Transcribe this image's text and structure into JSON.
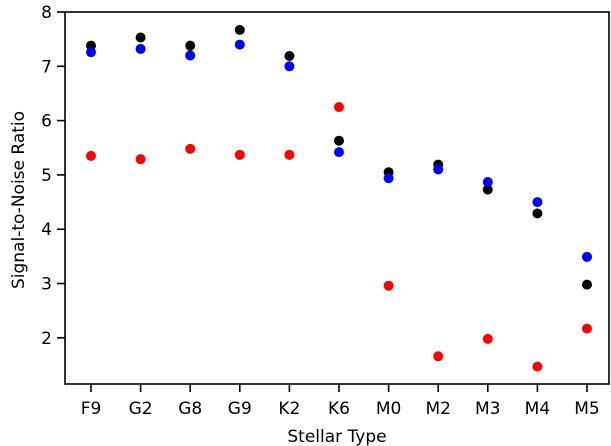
{
  "chart_data": {
    "type": "scatter",
    "xlabel": "Stellar Type",
    "ylabel": "Signal-to-Noise Ratio",
    "categories": [
      "F9",
      "G2",
      "G8",
      "G9",
      "K2",
      "K6",
      "M0",
      "M2",
      "M3",
      "M4",
      "M5"
    ],
    "ylim": [
      1.15,
      8.0
    ],
    "yticks": [
      2,
      3,
      4,
      5,
      6,
      7,
      8
    ],
    "grid": false,
    "legend": "none",
    "series": [
      {
        "color": "#000000",
        "values": [
          7.38,
          7.53,
          7.38,
          7.67,
          7.19,
          5.63,
          5.05,
          5.19,
          4.73,
          4.29,
          2.98
        ]
      },
      {
        "color": "#0000ff",
        "values": [
          7.26,
          7.32,
          7.2,
          7.4,
          7.0,
          5.42,
          4.94,
          5.1,
          4.87,
          4.5,
          3.49
        ]
      },
      {
        "color": "#ff0000",
        "values": [
          5.35,
          5.29,
          5.48,
          5.37,
          5.37,
          6.25,
          2.96,
          1.66,
          1.98,
          1.47,
          2.17
        ]
      }
    ]
  }
}
